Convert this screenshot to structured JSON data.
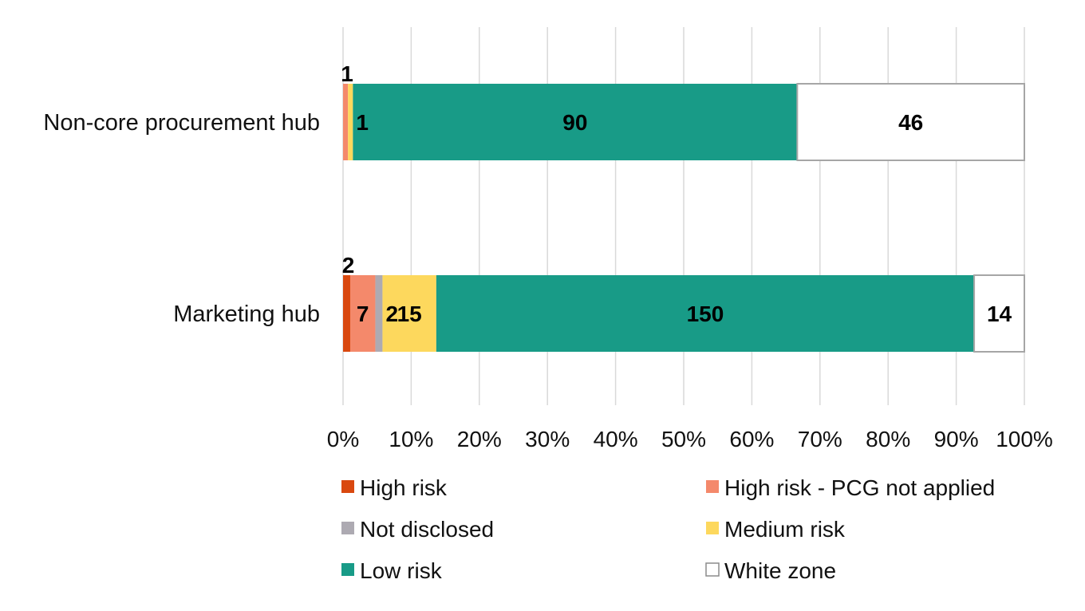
{
  "chart_data": {
    "type": "bar",
    "orientation": "horizontal",
    "stacking": "percent",
    "categories": [
      "Non-core procurement hub",
      "Marketing hub"
    ],
    "series": [
      {
        "name": "High risk",
        "color": "#D9480F",
        "values": [
          0,
          2
        ]
      },
      {
        "name": "High risk - PCG not applied",
        "color": "#F4896B",
        "values": [
          1,
          7
        ]
      },
      {
        "name": "Not disclosed",
        "color": "#ADAAB2",
        "values": [
          0,
          2
        ]
      },
      {
        "name": "Medium risk",
        "color": "#FDD85D",
        "values": [
          1,
          15
        ]
      },
      {
        "name": "Low risk",
        "color": "#189B87",
        "values": [
          90,
          150
        ]
      },
      {
        "name": "White zone",
        "color": "#FFFFFF",
        "values": [
          46,
          14
        ]
      }
    ],
    "x_ticks": [
      "0%",
      "10%",
      "20%",
      "30%",
      "40%",
      "50%",
      "60%",
      "70%",
      "80%",
      "90%",
      "100%"
    ],
    "xlim": [
      0,
      100
    ],
    "grid": "vertical",
    "legend": "bottom",
    "data_labels": [
      [
        "",
        "1",
        "",
        "1",
        "90",
        "46"
      ],
      [
        "2",
        "7",
        "2",
        "15",
        "150",
        "14"
      ]
    ],
    "title": "",
    "xlabel": "",
    "ylabel": ""
  }
}
